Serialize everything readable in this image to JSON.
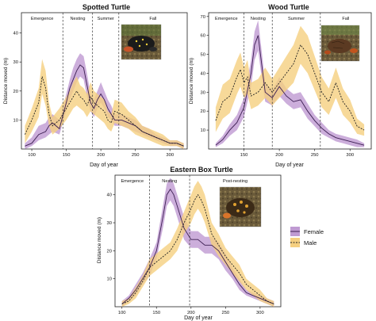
{
  "chart_data": [
    {
      "type": "area",
      "title": "Spotted Turtle",
      "xlabel": "Day of year",
      "ylabel": "Distance moved (m)",
      "xlim": [
        85,
        325
      ],
      "ylim": [
        0,
        47
      ],
      "x_ticks": [
        100,
        150,
        200,
        250,
        300
      ],
      "y_ticks": [
        10,
        20,
        30,
        40
      ],
      "phases": [
        {
          "label": "Emergence",
          "start": 85,
          "end": 145
        },
        {
          "label": "Nesting",
          "start": 145,
          "end": 188
        },
        {
          "label": "Summer",
          "start": 188,
          "end": 226
        },
        {
          "label": "Fall",
          "start": 226,
          "end": 325
        }
      ],
      "boundaries": [
        145,
        188,
        226
      ],
      "photo": "spotted-turtle-photo",
      "series": [
        {
          "name": "Female",
          "color": "#7b3fa0",
          "x": [
            90,
            100,
            110,
            120,
            125,
            130,
            140,
            150,
            155,
            160,
            165,
            170,
            175,
            180,
            185,
            190,
            195,
            200,
            205,
            210,
            215,
            220,
            230,
            240,
            250,
            260,
            270,
            280,
            290,
            300,
            310,
            320
          ],
          "mean": [
            1,
            2,
            5,
            6,
            8,
            9,
            7,
            16,
            21,
            24,
            27,
            29,
            28,
            22,
            16,
            14,
            17,
            19,
            17,
            14,
            12,
            10,
            10,
            9,
            8,
            6,
            5,
            4,
            3,
            2,
            2,
            1
          ],
          "lower": [
            0,
            1,
            3,
            4,
            5,
            6,
            5,
            13,
            17,
            20,
            23,
            25,
            24,
            18,
            13,
            11,
            14,
            16,
            14,
            11,
            10,
            8,
            8,
            7,
            6,
            5,
            4,
            3,
            2,
            1,
            1,
            0
          ],
          "upper": [
            2,
            4,
            8,
            9,
            11,
            12,
            10,
            19,
            24,
            28,
            31,
            33,
            32,
            26,
            19,
            17,
            20,
            23,
            20,
            17,
            15,
            12,
            12,
            11,
            10,
            8,
            7,
            5,
            4,
            3,
            3,
            2
          ]
        },
        {
          "name": "Male",
          "color": "#f0b040",
          "x": [
            90,
            100,
            110,
            115,
            120,
            125,
            130,
            140,
            150,
            155,
            160,
            165,
            170,
            175,
            180,
            185,
            190,
            195,
            200,
            205,
            210,
            215,
            220,
            230,
            240,
            250,
            260,
            270,
            280,
            290,
            300,
            310,
            320
          ],
          "mean": [
            5,
            10,
            16,
            25,
            21,
            12,
            8,
            10,
            14,
            16,
            18,
            20,
            18,
            17,
            15,
            18,
            16,
            15,
            14,
            13,
            10,
            9,
            13,
            12,
            10,
            8,
            6,
            5,
            4,
            3,
            2,
            2,
            1
          ],
          "lower": [
            2,
            6,
            11,
            19,
            15,
            8,
            5,
            7,
            10,
            12,
            14,
            15,
            14,
            13,
            11,
            13,
            12,
            11,
            10,
            9,
            7,
            6,
            9,
            8,
            7,
            5,
            4,
            3,
            2,
            1,
            1,
            1,
            0
          ],
          "upper": [
            8,
            14,
            21,
            31,
            27,
            16,
            11,
            14,
            18,
            20,
            23,
            25,
            22,
            21,
            19,
            23,
            20,
            19,
            18,
            17,
            13,
            12,
            17,
            16,
            13,
            11,
            8,
            7,
            6,
            5,
            3,
            3,
            2
          ]
        }
      ]
    },
    {
      "type": "area",
      "title": "Wood Turtle",
      "xlabel": "Day of year",
      "ylabel": "Distance moved (m)",
      "xlim": [
        100,
        330
      ],
      "ylim": [
        0,
        72
      ],
      "x_ticks": [
        150,
        200,
        250,
        300
      ],
      "y_ticks": [
        10,
        20,
        30,
        40,
        50,
        60,
        70
      ],
      "phases": [
        {
          "label": "Emergence",
          "start": 100,
          "end": 150
        },
        {
          "label": "Nesting",
          "start": 150,
          "end": 190
        },
        {
          "label": "Summer",
          "start": 190,
          "end": 258
        },
        {
          "label": "Fall",
          "start": 258,
          "end": 330
        }
      ],
      "boundaries": [
        150,
        190,
        258
      ],
      "photo": "wood-turtle-photo",
      "series": [
        {
          "name": "Female",
          "color": "#7b3fa0",
          "x": [
            110,
            120,
            130,
            140,
            150,
            160,
            165,
            170,
            175,
            180,
            190,
            200,
            210,
            220,
            230,
            240,
            250,
            260,
            270,
            280,
            290,
            300,
            310,
            320
          ],
          "mean": [
            2,
            5,
            10,
            14,
            22,
            40,
            55,
            60,
            45,
            30,
            27,
            33,
            28,
            25,
            26,
            20,
            15,
            11,
            8,
            6,
            5,
            4,
            3,
            2
          ],
          "lower": [
            1,
            3,
            7,
            10,
            17,
            33,
            47,
            52,
            38,
            25,
            23,
            28,
            24,
            21,
            22,
            16,
            12,
            8,
            6,
            4,
            3,
            2,
            1,
            1
          ],
          "upper": [
            3,
            7,
            13,
            18,
            27,
            47,
            62,
            68,
            52,
            35,
            31,
            38,
            32,
            29,
            30,
            24,
            18,
            14,
            10,
            8,
            7,
            6,
            5,
            3
          ]
        },
        {
          "name": "Male",
          "color": "#f0b040",
          "x": [
            110,
            120,
            130,
            140,
            145,
            150,
            155,
            160,
            170,
            180,
            190,
            200,
            210,
            220,
            230,
            240,
            250,
            260,
            270,
            280,
            290,
            300,
            310,
            320
          ],
          "mean": [
            15,
            25,
            28,
            38,
            42,
            35,
            38,
            28,
            30,
            35,
            30,
            35,
            40,
            45,
            55,
            50,
            40,
            30,
            25,
            35,
            25,
            20,
            12,
            10
          ],
          "lower": [
            9,
            16,
            19,
            29,
            33,
            27,
            29,
            21,
            23,
            27,
            23,
            27,
            31,
            35,
            45,
            40,
            31,
            22,
            18,
            27,
            18,
            14,
            8,
            7
          ],
          "upper": [
            22,
            34,
            37,
            47,
            51,
            43,
            47,
            35,
            37,
            43,
            37,
            43,
            49,
            55,
            65,
            60,
            49,
            38,
            32,
            43,
            32,
            26,
            16,
            13
          ]
        }
      ]
    },
    {
      "type": "area",
      "title": "Eastern Box Turtle",
      "xlabel": "Day of year",
      "ylabel": "Distance moved (m)",
      "xlim": [
        90,
        330
      ],
      "ylim": [
        0,
        47
      ],
      "x_ticks": [
        100,
        150,
        200,
        250,
        300
      ],
      "y_ticks": [
        10,
        20,
        30,
        40
      ],
      "phases": [
        {
          "label": "Emergence",
          "start": 90,
          "end": 140
        },
        {
          "label": "Nesting",
          "start": 140,
          "end": 198
        },
        {
          "label": "Post-nesting",
          "start": 198,
          "end": 330
        }
      ],
      "boundaries": [
        140,
        198
      ],
      "photo": "box-turtle-photo",
      "legend": {
        "position": "right",
        "entries": [
          "Female",
          "Male"
        ]
      },
      "series": [
        {
          "name": "Female",
          "color": "#7b3fa0",
          "x": [
            100,
            110,
            120,
            130,
            140,
            150,
            160,
            165,
            170,
            175,
            180,
            190,
            200,
            210,
            220,
            230,
            240,
            250,
            260,
            270,
            280,
            290,
            300,
            310,
            320
          ],
          "mean": [
            1,
            3,
            6,
            10,
            14,
            20,
            33,
            40,
            42,
            40,
            36,
            28,
            24,
            24,
            22,
            22,
            20,
            16,
            12,
            8,
            5,
            4,
            3,
            2,
            1
          ],
          "lower": [
            0,
            2,
            4,
            8,
            11,
            17,
            29,
            36,
            38,
            36,
            32,
            24,
            21,
            21,
            19,
            19,
            17,
            13,
            10,
            6,
            4,
            3,
            2,
            1,
            0
          ],
          "upper": [
            2,
            4,
            8,
            12,
            17,
            23,
            37,
            44,
            46,
            44,
            40,
            32,
            27,
            27,
            25,
            25,
            23,
            19,
            14,
            10,
            6,
            5,
            4,
            3,
            2
          ]
        },
        {
          "name": "Male",
          "color": "#f0b040",
          "x": [
            100,
            110,
            120,
            130,
            140,
            150,
            160,
            170,
            180,
            190,
            200,
            205,
            210,
            215,
            220,
            230,
            240,
            250,
            260,
            270,
            280,
            290,
            300,
            310,
            320
          ],
          "mean": [
            1,
            2,
            5,
            9,
            14,
            16,
            18,
            20,
            24,
            30,
            35,
            38,
            40,
            38,
            35,
            26,
            22,
            18,
            15,
            12,
            8,
            6,
            4,
            2,
            1
          ],
          "lower": [
            0,
            1,
            3,
            7,
            11,
            13,
            15,
            17,
            20,
            26,
            30,
            33,
            35,
            33,
            30,
            22,
            18,
            15,
            12,
            9,
            6,
            4,
            2,
            1,
            0
          ],
          "upper": [
            2,
            3,
            7,
            11,
            17,
            19,
            21,
            23,
            28,
            34,
            40,
            43,
            45,
            43,
            40,
            30,
            26,
            21,
            18,
            15,
            10,
            8,
            6,
            3,
            2
          ]
        }
      ]
    }
  ]
}
